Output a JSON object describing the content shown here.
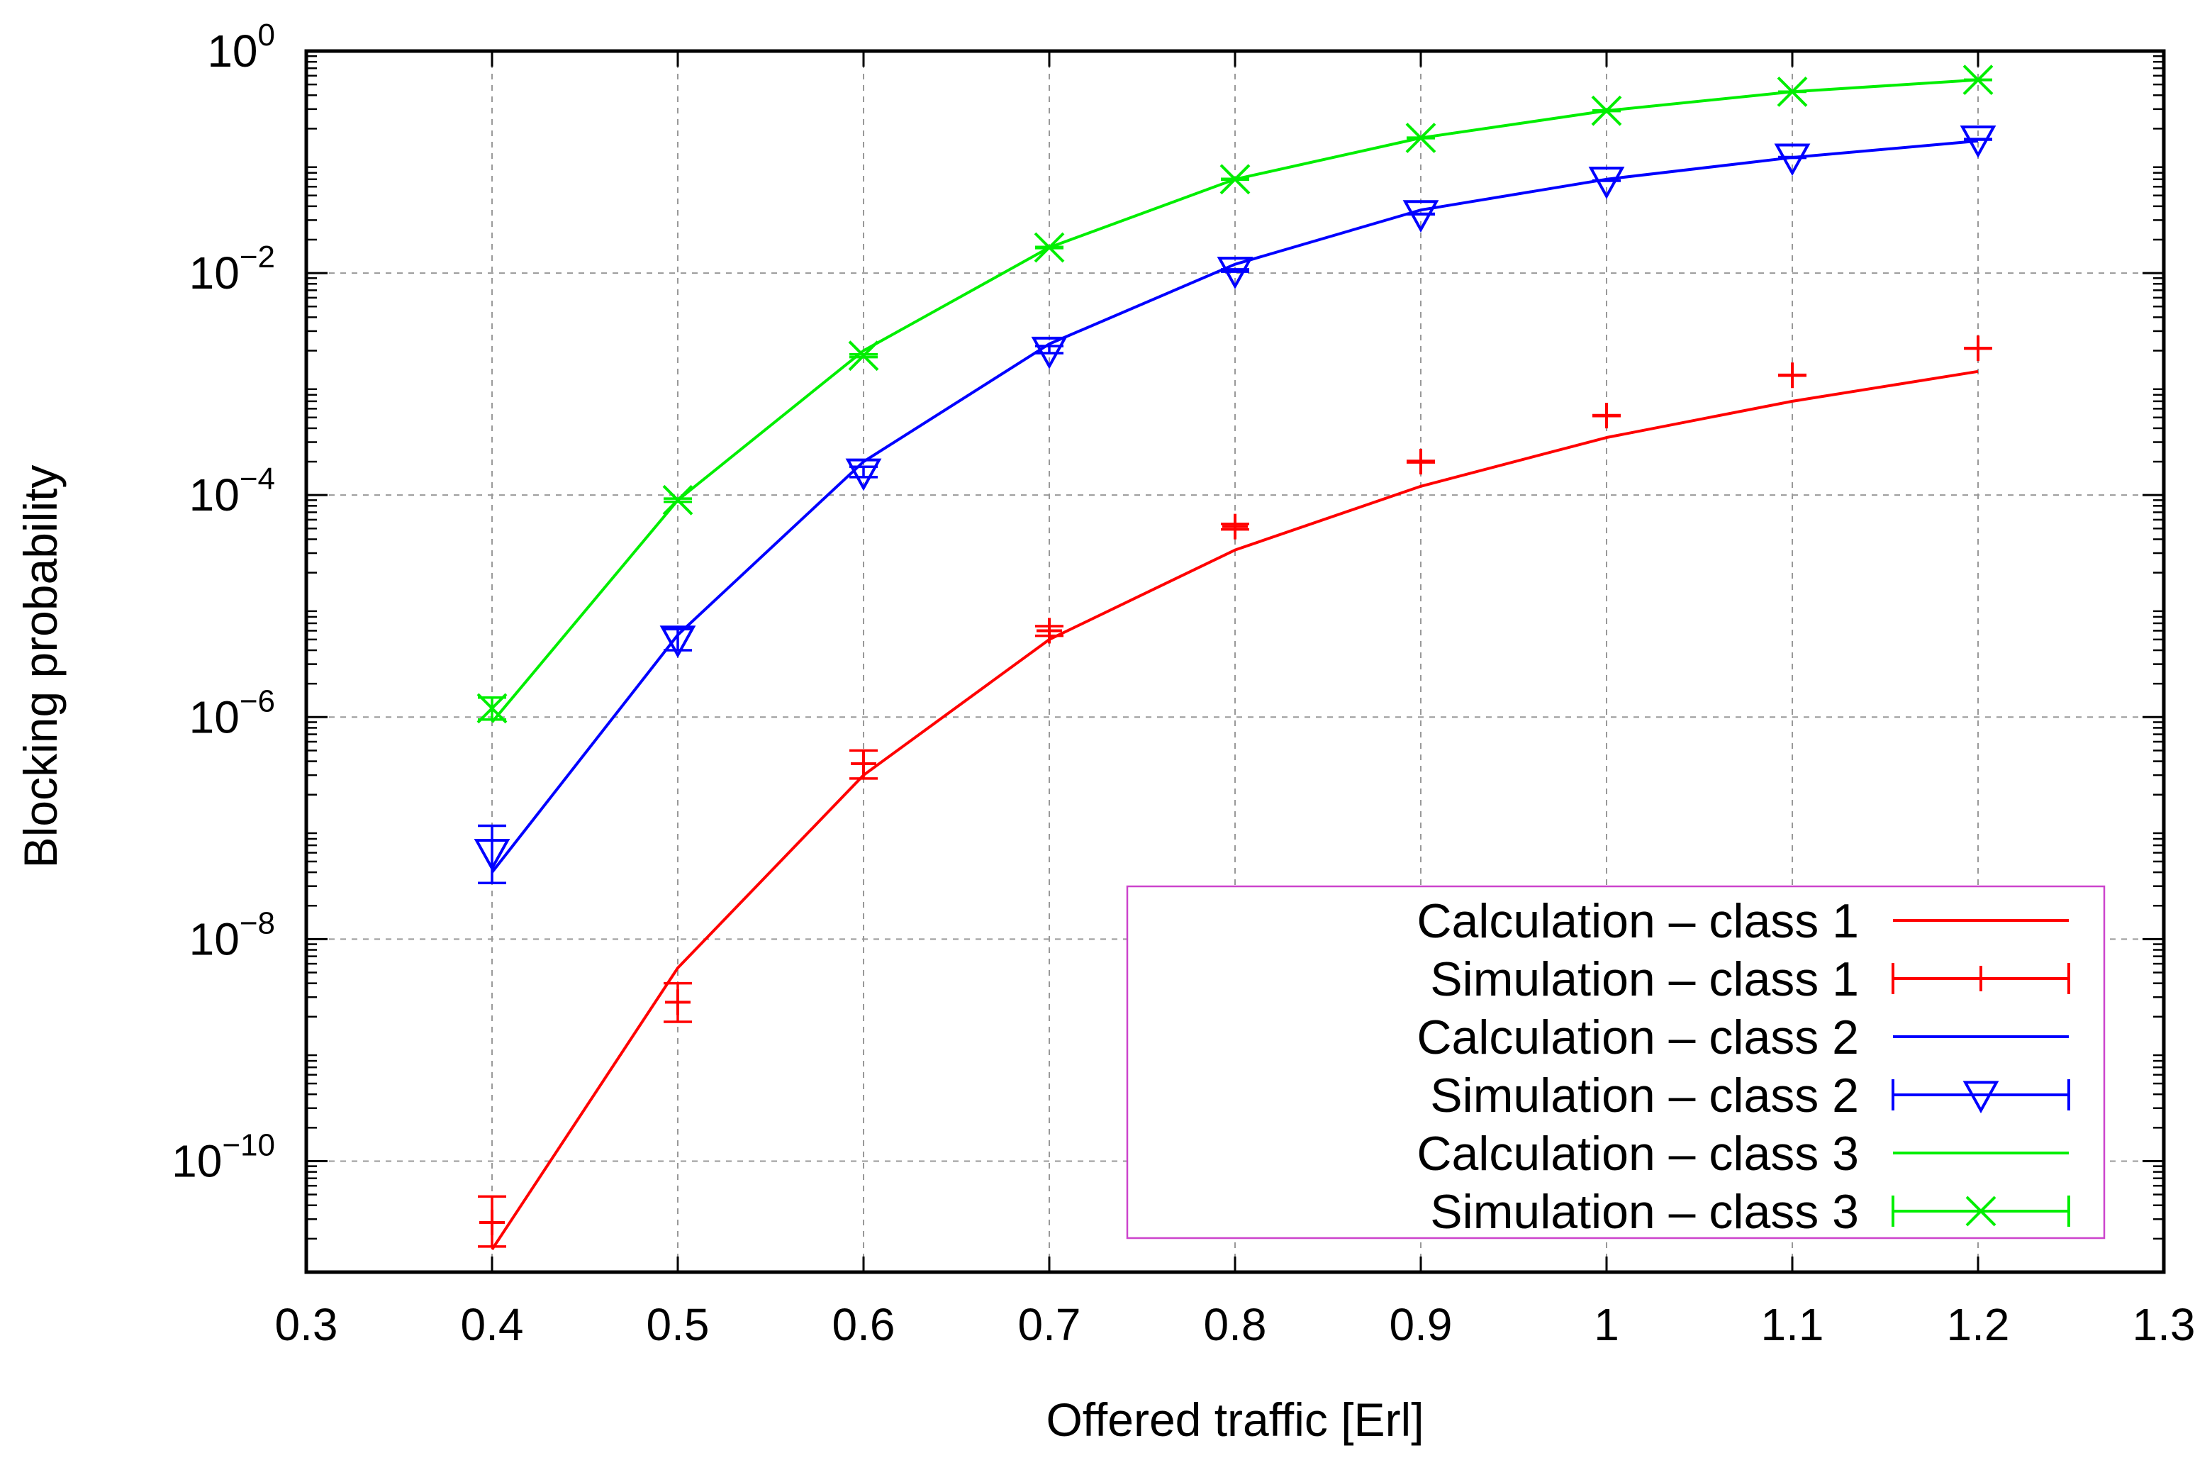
{
  "chart_data": {
    "type": "line",
    "title": "",
    "xlabel": "Offered traffic [Erl]",
    "ylabel": "Blocking probability",
    "x_scale": "linear",
    "y_scale": "log",
    "xlim": [
      0.3,
      1.3
    ],
    "ylim_exp": [
      -11,
      0
    ],
    "x_ticks": [
      "0.3",
      "0.4",
      "0.5",
      "0.6",
      "0.7",
      "0.8",
      "0.9",
      "1",
      "1.1",
      "1.2",
      "1.3"
    ],
    "y_ticks": [
      {
        "base": "10",
        "exp": "0"
      },
      {
        "base": "10",
        "exp": "−2"
      },
      {
        "base": "10",
        "exp": "−4"
      },
      {
        "base": "10",
        "exp": "−6"
      },
      {
        "base": "10",
        "exp": "−8"
      },
      {
        "base": "10",
        "exp": "−10"
      }
    ],
    "grid": true,
    "legend_position": "bottom-right",
    "x": [
      0.4,
      0.5,
      0.6,
      0.7,
      0.8,
      0.9,
      1.0,
      1.1,
      1.2
    ],
    "series": [
      {
        "name": "Calculation – class 1",
        "kind": "line",
        "color": "#ff0000",
        "values": [
          1.6e-11,
          5.5e-09,
          3e-07,
          5e-06,
          3.2e-05,
          0.00012,
          0.00033,
          0.0007,
          0.0013
        ]
      },
      {
        "name": "Simulation – class 1",
        "kind": "errorbar",
        "marker": "plus",
        "color": "#ff0000",
        "values": [
          2.8e-11,
          2.7e-09,
          3.8e-07,
          6e-06,
          5.2e-05,
          0.0002,
          0.00052,
          0.0012,
          0.0021
        ],
        "err_low": [
          1.7e-11,
          1.8e-09,
          2.8e-07,
          5.4e-06,
          4.9e-05,
          0.000197,
          0.000515,
          0.00119,
          0.00209
        ],
        "err_high": [
          4.8e-11,
          4e-09,
          5e-07,
          6.6e-06,
          5.5e-05,
          0.000203,
          0.000525,
          0.00121,
          0.00211
        ]
      },
      {
        "name": "Calculation – class 2",
        "kind": "line",
        "color": "#0000ff",
        "values": [
          4e-08,
          5.5e-06,
          0.0002,
          0.0023,
          0.012,
          0.037,
          0.07,
          0.11,
          0.155
        ]
      },
      {
        "name": "Simulation – class 2",
        "kind": "errorbar",
        "marker": "triangle-down",
        "color": "#0000ff",
        "values": [
          6e-08,
          5e-06,
          0.00016,
          0.002,
          0.0105,
          0.034,
          0.068,
          0.11,
          0.16
        ],
        "err_low": [
          3.2e-08,
          4e-06,
          0.000145,
          0.0019,
          0.0103,
          0.0338,
          0.0678,
          0.109,
          0.159
        ],
        "err_high": [
          1.05e-07,
          6.2e-06,
          0.00018,
          0.0022,
          0.0108,
          0.0342,
          0.0682,
          0.111,
          0.161
        ]
      },
      {
        "name": "Calculation – class 3",
        "kind": "line",
        "color": "#00ee00",
        "values": [
          9e-07,
          9e-05,
          0.002,
          0.017,
          0.07,
          0.165,
          0.29,
          0.43,
          0.55
        ],
        "note": ""
      },
      {
        "name": "Simulation – class 3",
        "kind": "errorbar",
        "marker": "x",
        "color": "#00ee00",
        "values": [
          1.2e-06,
          9e-05,
          0.0018,
          0.017,
          0.07,
          0.165,
          0.29,
          0.43,
          0.55
        ],
        "err_low": [
          9.5e-07,
          8.7e-05,
          0.00175,
          0.0168,
          0.0695,
          0.164,
          0.288,
          0.429,
          0.548
        ],
        "err_high": [
          1.5e-06,
          9.3e-05,
          0.00185,
          0.0172,
          0.0705,
          0.166,
          0.292,
          0.431,
          0.552
        ]
      }
    ]
  }
}
